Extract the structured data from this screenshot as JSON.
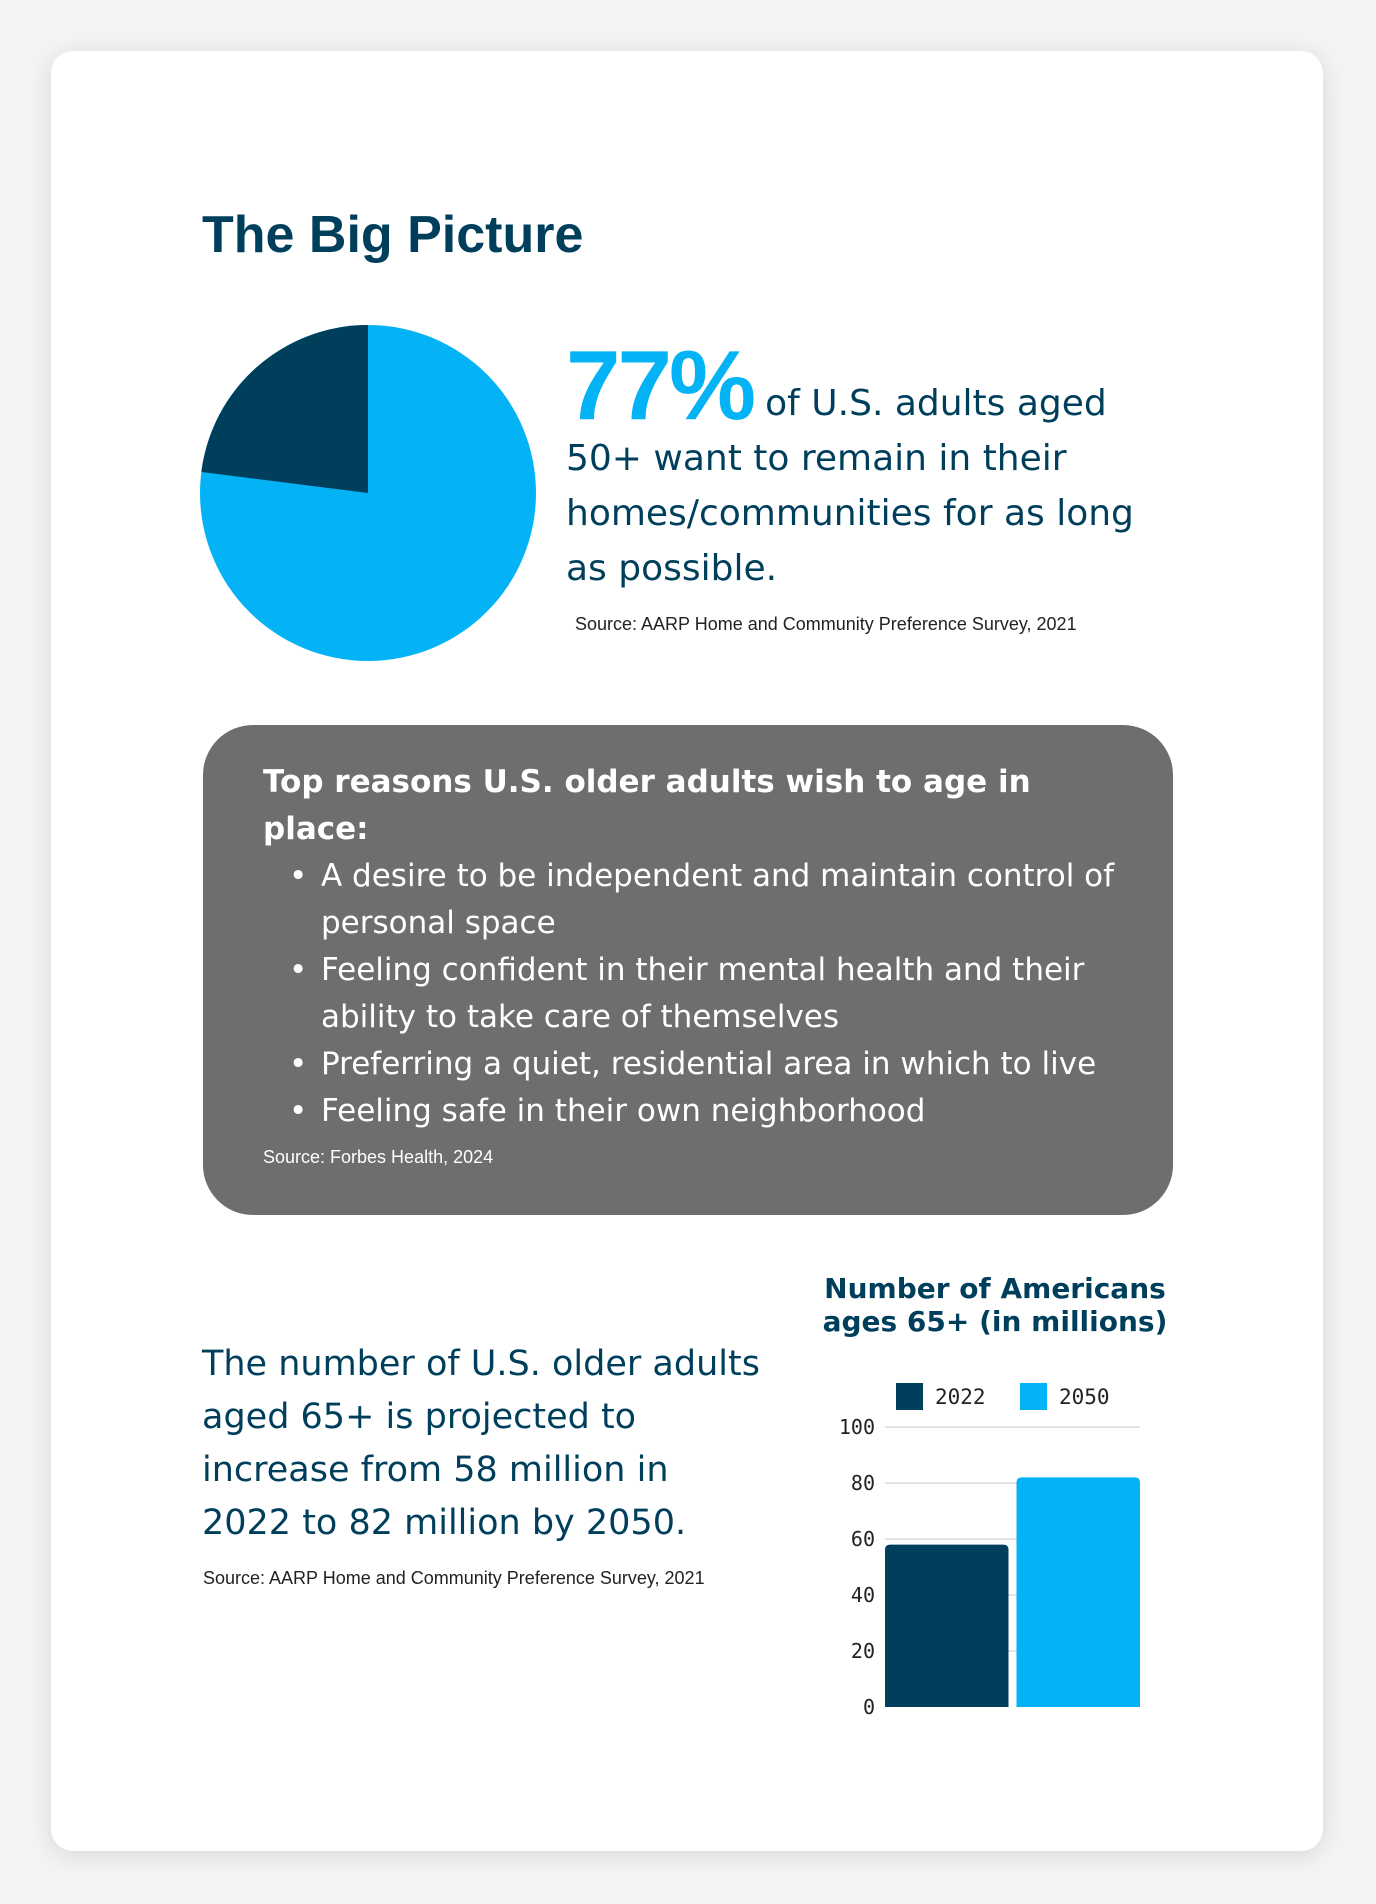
{
  "title": "The Big Picture",
  "stat": {
    "value": "77%",
    "text": "of U.S. adults aged 50+ want to remain in their homes/communities for as long as possible.",
    "source": "Source: AARP Home and Community Preference Survey, 2021",
    "percent": 77,
    "colors": {
      "main": "#03b3f5",
      "rest": "#003f5c"
    }
  },
  "reasons": {
    "heading": "Top reasons U.S. older adults wish to age in place:",
    "items": [
      "A desire to be independent and maintain control of personal space",
      "Feeling confident in their mental health and their ability to take care of themselves",
      "Preferring a quiet, residential area in which to live",
      "Feeling safe in their own neighborhood"
    ],
    "source": "Source: Forbes Health, 2024"
  },
  "projection": {
    "text": "The number of U.S. older adults aged 65+ is projected to increase from 58 million in 2022 to 82 million by 2050.",
    "source": "Source: AARP Home and Community Preference Survey, 2021"
  },
  "chart_data": {
    "type": "bar",
    "title": "Number of Americans ages 65+ (in millions)",
    "categories": [
      "2022",
      "2050"
    ],
    "values": [
      58,
      82
    ],
    "colors": [
      "#003f5c",
      "#03b3f5"
    ],
    "legend": [
      "2022",
      "2050"
    ],
    "legend_position": "top",
    "ylim": [
      0,
      100
    ],
    "yticks": [
      0,
      20,
      40,
      60,
      80,
      100
    ],
    "xlabel": "",
    "ylabel": "",
    "grid": true
  }
}
